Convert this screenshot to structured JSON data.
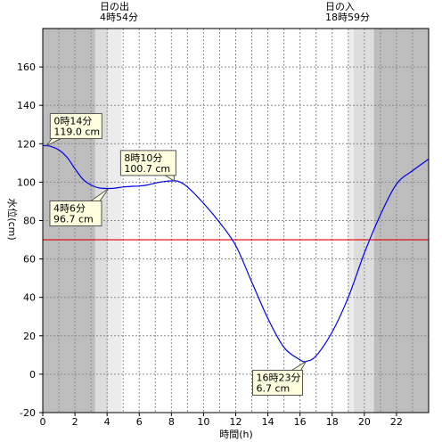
{
  "chart_data": {
    "type": "line",
    "xlabel": "時間(h)",
    "ylabel": "水位(cm)",
    "xlim": [
      0,
      24
    ],
    "ylim": [
      -20,
      180
    ],
    "x_ticks": [
      0,
      2,
      4,
      6,
      8,
      10,
      12,
      14,
      16,
      18,
      20,
      22
    ],
    "y_ticks": [
      -20,
      0,
      20,
      40,
      60,
      80,
      100,
      120,
      140,
      160
    ],
    "grid": true,
    "reference_line": {
      "y": 70,
      "color": "#e00000"
    },
    "line_color": "#0000ee",
    "sunrise": {
      "label": "日の出",
      "time": "4時54分",
      "hour": 4.9
    },
    "sunset": {
      "label": "日の入",
      "time": "18時59分",
      "hour": 18.98
    },
    "shading": {
      "night_color": "#bdbdbd",
      "twilight_color": "#dddddd",
      "dawn_twilight_start": 3.25,
      "dusk_twilight_end": 20.6
    },
    "series": [
      {
        "x": [
          0,
          0.24,
          0.5,
          1,
          1.5,
          2,
          2.5,
          3,
          3.5,
          4.1,
          4.5,
          5,
          5.5,
          6,
          6.5,
          7,
          7.5,
          8.17,
          8.5,
          9,
          10,
          11,
          12,
          13,
          14,
          15,
          16,
          16.38,
          17,
          18,
          19,
          20,
          21,
          22,
          23,
          24
        ],
        "y": [
          119,
          119,
          118.6,
          116.8,
          113,
          107,
          101.5,
          98.5,
          97,
          96.7,
          96.9,
          97.5,
          97.8,
          98,
          98.5,
          99.5,
          100.3,
          100.7,
          100.2,
          97.5,
          89,
          79,
          67,
          48,
          29,
          14,
          7.5,
          6.7,
          9.5,
          22,
          40,
          63,
          83,
          99,
          106,
          112
        ]
      }
    ],
    "annotations": [
      {
        "time": "0時14分",
        "value": "119.0 cm",
        "x": 0.24,
        "y": 119.0
      },
      {
        "time": "4時6分",
        "value": "96.7 cm",
        "x": 4.1,
        "y": 96.7
      },
      {
        "time": "8時10分",
        "value": "100.7 cm",
        "x": 8.17,
        "y": 100.7
      },
      {
        "time": "16時23分",
        "value": "6.7 cm",
        "x": 16.38,
        "y": 6.7
      }
    ]
  }
}
